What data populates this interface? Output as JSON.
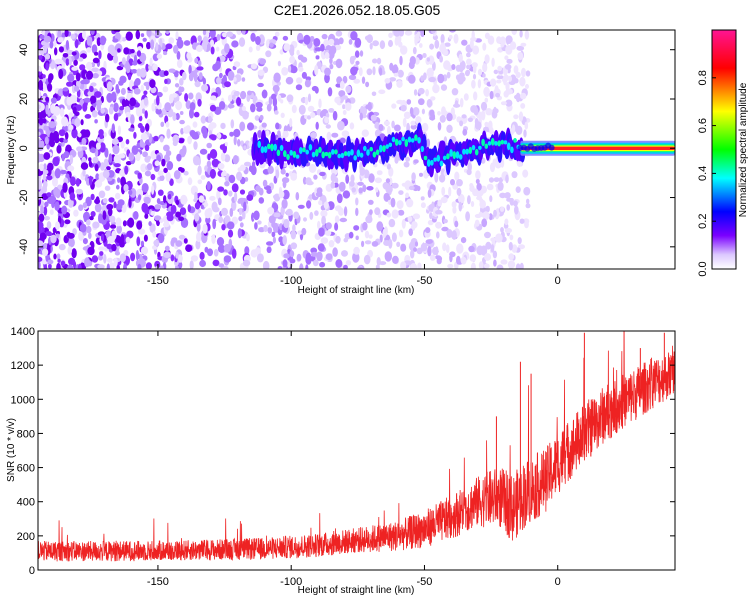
{
  "page": {
    "title": "C2E1.2026.052.18.05.G05"
  },
  "chart_data": [
    {
      "type": "heatmap",
      "title": "C2E1.2026.052.18.05.G05",
      "xlabel": "Height of straight line (km)",
      "ylabel": "Frequency (Hz)",
      "xlim": [
        -195,
        44
      ],
      "ylim": [
        -49,
        48
      ],
      "xticks": [
        -150,
        -100,
        -50,
        0
      ],
      "yticks": [
        -40,
        -20,
        0,
        20,
        40
      ],
      "colorbar": {
        "label": "Normalized spectral amplitude",
        "range": [
          0,
          1
        ],
        "ticks": [
          0,
          0.2,
          0.4,
          0.6,
          0.8
        ],
        "colors": [
          "#ffffff",
          "#7a00ff",
          "#0000ff",
          "#00ffff",
          "#00ff00",
          "#ffff00",
          "#ff0000",
          "#ff1493"
        ]
      },
      "description_points": {
        "noise_region_x": [
          -195,
          -15
        ],
        "signal_track": [
          {
            "x": -112,
            "f": 0
          },
          {
            "x": -100,
            "f": -2
          },
          {
            "x": -90,
            "f": -1
          },
          {
            "x": -80,
            "f": -3
          },
          {
            "x": -70,
            "f": -1
          },
          {
            "x": -60,
            "f": 2
          },
          {
            "x": -52,
            "f": 4
          },
          {
            "x": -48,
            "f": -6
          },
          {
            "x": -40,
            "f": -3
          },
          {
            "x": -30,
            "f": 0
          },
          {
            "x": -20,
            "f": 2
          },
          {
            "x": -12,
            "f": -1
          },
          {
            "x": 0,
            "f": 0
          },
          {
            "x": 20,
            "f": 0
          },
          {
            "x": 44,
            "f": 0
          }
        ]
      }
    },
    {
      "type": "line",
      "title": "",
      "xlabel": "Height of straight line (km)",
      "ylabel": "SNR (10 * v/v)",
      "xlim": [
        -195,
        44
      ],
      "ylim": [
        0,
        1400
      ],
      "xticks": [
        -150,
        -100,
        -50,
        0
      ],
      "yticks": [
        0,
        200,
        400,
        600,
        800,
        1000,
        1200,
        1400
      ],
      "series": [
        {
          "name": "SNR",
          "color": "#ee2222",
          "envelope": [
            {
              "x": -195,
              "mean": 110,
              "spread": 60
            },
            {
              "x": -170,
              "mean": 110,
              "spread": 60
            },
            {
              "x": -140,
              "mean": 115,
              "spread": 60
            },
            {
              "x": -110,
              "mean": 125,
              "spread": 65
            },
            {
              "x": -90,
              "mean": 145,
              "spread": 70
            },
            {
              "x": -75,
              "mean": 175,
              "spread": 75
            },
            {
              "x": -60,
              "mean": 200,
              "spread": 90
            },
            {
              "x": -50,
              "mean": 240,
              "spread": 110
            },
            {
              "x": -40,
              "mean": 310,
              "spread": 130
            },
            {
              "x": -30,
              "mean": 400,
              "spread": 150
            },
            {
              "x": -22,
              "mean": 430,
              "spread": 180
            },
            {
              "x": -17,
              "mean": 360,
              "spread": 200
            },
            {
              "x": -12,
              "mean": 450,
              "spread": 200
            },
            {
              "x": -5,
              "mean": 520,
              "spread": 190
            },
            {
              "x": 3,
              "mean": 680,
              "spread": 180
            },
            {
              "x": 10,
              "mean": 800,
              "spread": 180
            },
            {
              "x": 18,
              "mean": 920,
              "spread": 170
            },
            {
              "x": 28,
              "mean": 1020,
              "spread": 160
            },
            {
              "x": 36,
              "mean": 1100,
              "spread": 150
            },
            {
              "x": 44,
              "mean": 1160,
              "spread": 140
            }
          ],
          "spikes": [
            {
              "x": -14,
              "y": 1220
            },
            {
              "x": -10,
              "y": 1150
            },
            {
              "x": 10,
              "y": 1390
            },
            {
              "x": 31,
              "y": 1300
            },
            {
              "x": 40,
              "y": 1390
            },
            {
              "x": -23,
              "y": 900
            }
          ]
        }
      ]
    }
  ]
}
